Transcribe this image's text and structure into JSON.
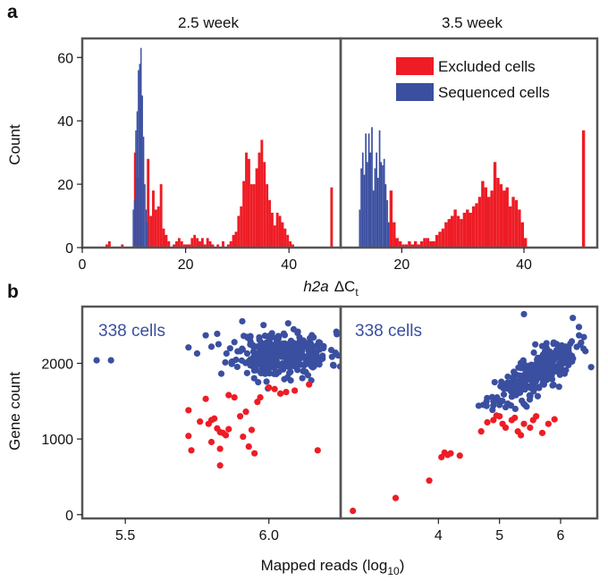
{
  "figure": {
    "panel_a_label": "a",
    "panel_b_label": "b"
  },
  "colors": {
    "excluded": "#ee1c25",
    "sequenced": "#3a4fa0",
    "frame": "#555555"
  },
  "chart_data": [
    {
      "type": "histogram",
      "panel": "a",
      "title": "2.5 week",
      "xlabel_italic": "h2a",
      "xlabel_rest": "ΔC",
      "xlabel_sub": "t",
      "ylabel": "Count",
      "xlim": [
        0,
        50
      ],
      "ylim": [
        0,
        66
      ],
      "x_ticks": [
        0,
        20,
        40
      ],
      "y_ticks": [
        0,
        20,
        40,
        60
      ],
      "bin_width": 0.5,
      "series": [
        {
          "name": "Excluded cells",
          "bins": [
            [
              4.5,
              1
            ],
            [
              5,
              2
            ],
            [
              7.5,
              1
            ],
            [
              10,
              30
            ],
            [
              10.5,
              22
            ],
            [
              12.5,
              28
            ],
            [
              13,
              10
            ],
            [
              13.5,
              18
            ],
            [
              14,
              12
            ],
            [
              14.5,
              13
            ],
            [
              15,
              20
            ],
            [
              15.5,
              6
            ],
            [
              16,
              4
            ],
            [
              16.5,
              2
            ],
            [
              17.5,
              1
            ],
            [
              18,
              2
            ],
            [
              18.5,
              3
            ],
            [
              19,
              2
            ],
            [
              19.5,
              1
            ],
            [
              20,
              1
            ],
            [
              20.5,
              1
            ],
            [
              21,
              3
            ],
            [
              21.5,
              4
            ],
            [
              22,
              3
            ],
            [
              22.5,
              2
            ],
            [
              23,
              3
            ],
            [
              23.5,
              1
            ],
            [
              24,
              3
            ],
            [
              24.5,
              2
            ],
            [
              25,
              1
            ],
            [
              26,
              1
            ],
            [
              27,
              2
            ],
            [
              28,
              1
            ],
            [
              28.5,
              2
            ],
            [
              29,
              4
            ],
            [
              29.5,
              5
            ],
            [
              30,
              10
            ],
            [
              30.5,
              13
            ],
            [
              31,
              21
            ],
            [
              31.5,
              30
            ],
            [
              32,
              28
            ],
            [
              32.5,
              20
            ],
            [
              33,
              20
            ],
            [
              33.5,
              25
            ],
            [
              34,
              30
            ],
            [
              34.5,
              34
            ],
            [
              35,
              27
            ],
            [
              35.5,
              20
            ],
            [
              36,
              15
            ],
            [
              36.5,
              11
            ],
            [
              37,
              7
            ],
            [
              37.5,
              11
            ],
            [
              38,
              10
            ],
            [
              38.5,
              8
            ],
            [
              39,
              6
            ],
            [
              39.5,
              4
            ],
            [
              40,
              2
            ],
            [
              40.5,
              1
            ],
            [
              48,
              19
            ]
          ]
        },
        {
          "name": "Sequenced cells",
          "bins": [
            [
              9.75,
              12
            ],
            [
              10,
              15
            ],
            [
              10.25,
              37
            ],
            [
              10.5,
              43
            ],
            [
              10.75,
              56
            ],
            [
              11,
              58
            ],
            [
              11.25,
              63
            ],
            [
              11.5,
              48
            ],
            [
              11.75,
              35
            ],
            [
              12,
              20
            ],
            [
              12.25,
              12
            ],
            [
              12.5,
              8
            ]
          ]
        }
      ]
    },
    {
      "type": "histogram",
      "panel": "a",
      "title": "3.5 week",
      "xlim": [
        10,
        52
      ],
      "ylim": [
        0,
        66
      ],
      "x_ticks": [
        20,
        40
      ],
      "bin_width": 0.5,
      "legend": [
        "Excluded cells",
        "Sequenced cells"
      ],
      "series": [
        {
          "name": "Excluded cells",
          "bins": [
            [
              18,
              18
            ],
            [
              18.5,
              8
            ],
            [
              19,
              3
            ],
            [
              19.5,
              2
            ],
            [
              20,
              1
            ],
            [
              20.5,
              1
            ],
            [
              21,
              2
            ],
            [
              21.5,
              1
            ],
            [
              22,
              2
            ],
            [
              22.5,
              1
            ],
            [
              23,
              2
            ],
            [
              23.5,
              3
            ],
            [
              24,
              3
            ],
            [
              24.5,
              2
            ],
            [
              25,
              2
            ],
            [
              25.5,
              4
            ],
            [
              26,
              5
            ],
            [
              26.5,
              6
            ],
            [
              27,
              8
            ],
            [
              27.5,
              9
            ],
            [
              28,
              10
            ],
            [
              28.5,
              12
            ],
            [
              29,
              10
            ],
            [
              29.5,
              9
            ],
            [
              30,
              11
            ],
            [
              30.5,
              12
            ],
            [
              31,
              11
            ],
            [
              31.5,
              13
            ],
            [
              32,
              14
            ],
            [
              32.5,
              16
            ],
            [
              33,
              21
            ],
            [
              33.5,
              19
            ],
            [
              34,
              16
            ],
            [
              34.5,
              18
            ],
            [
              35,
              27
            ],
            [
              35.5,
              22
            ],
            [
              36,
              20
            ],
            [
              36.5,
              18
            ],
            [
              37,
              19
            ],
            [
              37.5,
              13
            ],
            [
              38,
              16
            ],
            [
              38.5,
              15
            ],
            [
              39,
              12
            ],
            [
              39.5,
              8
            ],
            [
              40,
              3
            ],
            [
              49.5,
              37
            ]
          ]
        },
        {
          "name": "Sequenced cells",
          "bins": [
            [
              13,
              12
            ],
            [
              13.25,
              25
            ],
            [
              13.5,
              30
            ],
            [
              13.75,
              23
            ],
            [
              14,
              36
            ],
            [
              14.25,
              27
            ],
            [
              14.5,
              36
            ],
            [
              14.75,
              30
            ],
            [
              15,
              38
            ],
            [
              15.25,
              18
            ],
            [
              15.5,
              25
            ],
            [
              15.75,
              30
            ],
            [
              16,
              22
            ],
            [
              16.25,
              37
            ],
            [
              16.5,
              27
            ],
            [
              16.75,
              26
            ],
            [
              17,
              28
            ],
            [
              17.25,
              20
            ],
            [
              17.5,
              15
            ],
            [
              17.75,
              8
            ]
          ]
        }
      ]
    },
    {
      "type": "scatter",
      "panel": "b",
      "annotation": "338 cells",
      "ylabel": "Gene count",
      "xlim": [
        5.35,
        6.25
      ],
      "ylim": [
        -50,
        2750
      ],
      "x_ticks": [
        5.5,
        6.0
      ],
      "x_tick_labels": [
        "5.5",
        "6.0"
      ],
      "y_ticks": [
        0,
        1000,
        2000
      ],
      "series": [
        {
          "name": "Sequenced cells",
          "cluster": {
            "center": [
              6.05,
              2120
            ],
            "spread": [
              0.08,
              150
            ],
            "n": 330,
            "seed": 11
          },
          "points": [
            [
              5.4,
              2040
            ],
            [
              5.45,
              2040
            ],
            [
              5.72,
              2210
            ],
            [
              5.75,
              2130
            ],
            [
              5.78,
              2370
            ],
            [
              5.8,
              2220
            ],
            [
              5.82,
              2390
            ],
            [
              5.88,
              2280
            ],
            [
              5.9,
              2160
            ],
            [
              6.19,
              2200
            ]
          ]
        },
        {
          "name": "Excluded cells",
          "points": [
            [
              5.72,
              1380
            ],
            [
              5.72,
              1040
            ],
            [
              5.73,
              850
            ],
            [
              5.76,
              1230
            ],
            [
              5.78,
              1530
            ],
            [
              5.79,
              1200
            ],
            [
              5.8,
              1250
            ],
            [
              5.8,
              960
            ],
            [
              5.81,
              1270
            ],
            [
              5.82,
              1140
            ],
            [
              5.83,
              1090
            ],
            [
              5.83,
              870
            ],
            [
              5.83,
              650
            ],
            [
              5.84,
              1080
            ],
            [
              5.85,
              1050
            ],
            [
              5.86,
              1130
            ],
            [
              5.86,
              1580
            ],
            [
              5.88,
              1550
            ],
            [
              5.9,
              1300
            ],
            [
              5.91,
              1030
            ],
            [
              5.92,
              1360
            ],
            [
              5.93,
              900
            ],
            [
              5.94,
              1120
            ],
            [
              5.95,
              810
            ],
            [
              5.96,
              1490
            ],
            [
              5.97,
              1550
            ],
            [
              6.0,
              1680
            ],
            [
              6.02,
              1660
            ],
            [
              6.04,
              1600
            ],
            [
              6.06,
              1620
            ],
            [
              6.09,
              1640
            ],
            [
              6.14,
              1720
            ],
            [
              6.17,
              850
            ]
          ]
        }
      ]
    },
    {
      "type": "scatter",
      "panel": "b",
      "annotation": "338 cells",
      "xlabel": "Mapped reads (log",
      "xlabel_sub": "10",
      "xlabel_close": ")",
      "xlim": [
        2.4,
        6.6
      ],
      "ylim": [
        -50,
        2750
      ],
      "x_ticks": [
        4,
        5,
        6
      ],
      "x_tick_labels": [
        "4",
        "5",
        "6"
      ],
      "series": [
        {
          "name": "Sequenced cells",
          "cluster": {
            "center": [
              5.6,
              1870
            ],
            "spread": [
              0.32,
              190
            ],
            "corr": 0.75,
            "n": 320,
            "seed": 23
          },
          "points": [
            [
              4.9,
              1500
            ],
            [
              5.0,
              1450
            ],
            [
              5.1,
              1420
            ],
            [
              5.4,
              2650
            ],
            [
              6.3,
              2480
            ],
            [
              6.5,
              1950
            ],
            [
              6.2,
              2600
            ]
          ]
        },
        {
          "name": "Excluded cells",
          "points": [
            [
              2.6,
              50
            ],
            [
              3.3,
              220
            ],
            [
              3.85,
              450
            ],
            [
              4.05,
              760
            ],
            [
              4.1,
              820
            ],
            [
              4.15,
              790
            ],
            [
              4.2,
              810
            ],
            [
              4.35,
              780
            ],
            [
              4.7,
              1100
            ],
            [
              4.8,
              1220
            ],
            [
              4.9,
              1250
            ],
            [
              4.95,
              1310
            ],
            [
              5.0,
              1300
            ],
            [
              5.05,
              1200
            ],
            [
              5.1,
              1150
            ],
            [
              5.2,
              1250
            ],
            [
              5.25,
              1280
            ],
            [
              5.3,
              1100
            ],
            [
              5.35,
              1050
            ],
            [
              5.4,
              1200
            ],
            [
              5.5,
              1150
            ],
            [
              5.55,
              1250
            ],
            [
              5.6,
              1300
            ],
            [
              5.7,
              1080
            ],
            [
              5.8,
              1200
            ],
            [
              5.9,
              1260
            ]
          ]
        }
      ]
    }
  ]
}
